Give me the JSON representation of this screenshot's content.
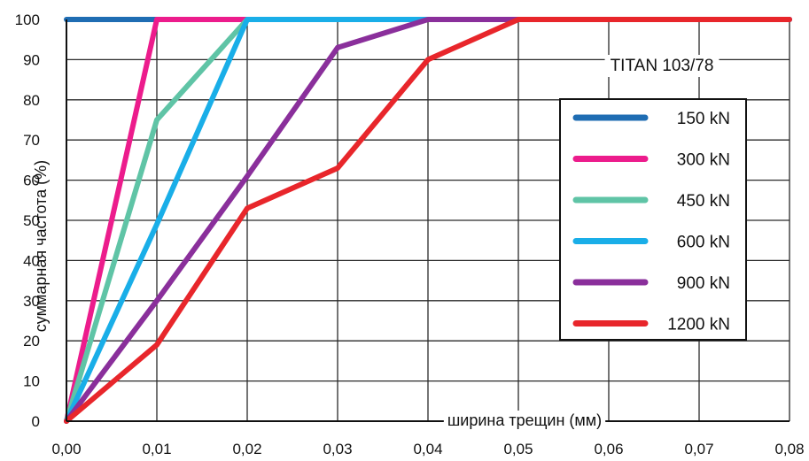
{
  "chart_data": {
    "type": "line",
    "annotation": "TITAN 103/78",
    "xlabel": "ширина трещин (мм)",
    "ylabel": "суммарная частота (%)",
    "xlim": [
      0,
      0.08
    ],
    "ylim": [
      0,
      100
    ],
    "x_ticks": [
      "0,00",
      "0,01",
      "0,02",
      "0,03",
      "0,04",
      "0,05",
      "0,06",
      "0,07",
      "0,08"
    ],
    "y_ticks": [
      "0",
      "10",
      "20",
      "30",
      "40",
      "50",
      "60",
      "70",
      "80",
      "90",
      "100"
    ],
    "grid": true,
    "legend_position": "right",
    "series": [
      {
        "name": "150 kN",
        "color": "#1f6db3",
        "points": [
          [
            0.0,
            100
          ],
          [
            0.08,
            100
          ]
        ]
      },
      {
        "name": "300 kN",
        "color": "#ec1c8c",
        "points": [
          [
            0.0,
            0
          ],
          [
            0.01,
            100
          ],
          [
            0.08,
            100
          ]
        ]
      },
      {
        "name": "450 kN",
        "color": "#5fc4a6",
        "points": [
          [
            0.0,
            0
          ],
          [
            0.01,
            75
          ],
          [
            0.02,
            100
          ],
          [
            0.08,
            100
          ]
        ]
      },
      {
        "name": "600 kN",
        "color": "#19aee8",
        "points": [
          [
            0.0,
            0
          ],
          [
            0.01,
            49
          ],
          [
            0.02,
            100
          ],
          [
            0.08,
            100
          ]
        ]
      },
      {
        "name": "900 kN",
        "color": "#8a2f9b",
        "points": [
          [
            0.0,
            0
          ],
          [
            0.01,
            30
          ],
          [
            0.02,
            61
          ],
          [
            0.03,
            93
          ],
          [
            0.04,
            100
          ],
          [
            0.08,
            100
          ]
        ]
      },
      {
        "name": "1200 kN",
        "color": "#e8262b",
        "points": [
          [
            0.0,
            0
          ],
          [
            0.01,
            19
          ],
          [
            0.02,
            53
          ],
          [
            0.03,
            63
          ],
          [
            0.04,
            90
          ],
          [
            0.05,
            100
          ],
          [
            0.08,
            100
          ]
        ]
      }
    ]
  }
}
